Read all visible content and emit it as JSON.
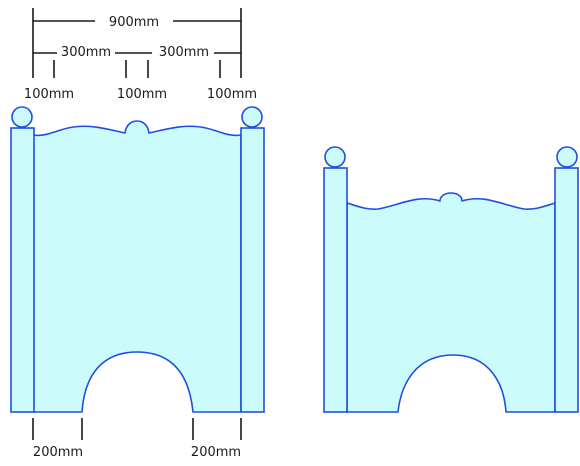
{
  "dimensions": {
    "total_width": "900mm",
    "panel_left": "300mm",
    "panel_right": "300mm",
    "post_left": "100mm",
    "post_middle": "100mm",
    "post_right": "100mm",
    "bottom_left": "200mm",
    "bottom_right": "200mm"
  },
  "colors": {
    "fill": "#ccfbfc",
    "outline": "#1f4fe0",
    "dimension_line": "#1a1a1a"
  }
}
